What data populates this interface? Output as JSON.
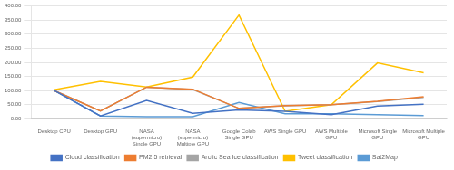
{
  "chart_data": {
    "type": "line",
    "categories": [
      "Desktop CPU",
      "Desktop GPU",
      "NASA\n(supermicro)\nSingle GPU",
      "NASA\n(supermicro)\nMultiple GPU",
      "Google Colab\nSingle GPU",
      "AWS Single GPU",
      "AWS Multiple\nGPU",
      "Microsoft Single\nGPU",
      "Microsoft Multiple\nGPU"
    ],
    "series": [
      {
        "name": "Cloud classification",
        "color": "#4472C4",
        "values": [
          100,
          10,
          65,
          20,
          32,
          27,
          15,
          45,
          52
        ]
      },
      {
        "name": "PM2.5 retrieval",
        "color": "#ED7D31",
        "values": [
          100,
          28,
          112,
          105,
          37,
          47,
          50,
          62,
          78
        ]
      },
      {
        "name": "Arctic Sea Ice classification",
        "color": "#A5A5A5",
        "values": [
          100,
          28,
          112,
          104,
          37,
          46,
          50,
          61,
          76
        ]
      },
      {
        "name": "Tweet classification",
        "color": "#FFC000",
        "values": [
          103,
          133,
          113,
          148,
          368,
          27,
          50,
          198,
          163
        ]
      },
      {
        "name": "Sat2Map",
        "color": "#5B9BD5",
        "values": [
          100,
          10,
          8,
          8,
          58,
          18,
          18,
          15,
          12
        ]
      }
    ],
    "ylim": [
      0,
      400
    ],
    "yticks": [
      {
        "value": 0,
        "label": "0.00"
      },
      {
        "value": 50,
        "label": "50.00"
      },
      {
        "value": 100,
        "label": "100.00"
      },
      {
        "value": 150,
        "label": "150.00"
      },
      {
        "value": 200,
        "label": "200.00"
      },
      {
        "value": 250,
        "label": "250.00"
      },
      {
        "value": 300,
        "label": "300.00"
      },
      {
        "value": 350,
        "label": "350.00"
      },
      {
        "value": 400,
        "label": "400.00"
      }
    ],
    "grid": "y",
    "legend": "bottom"
  }
}
